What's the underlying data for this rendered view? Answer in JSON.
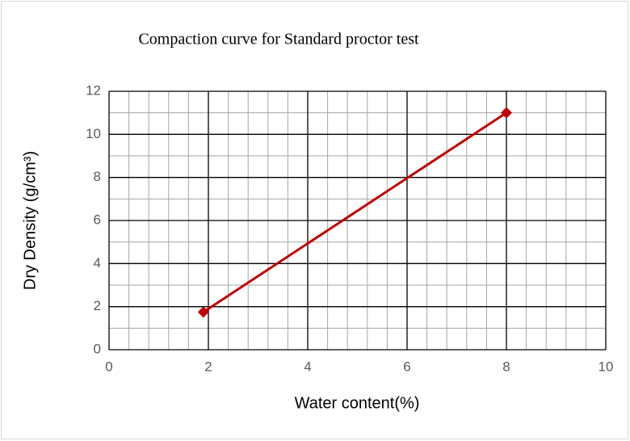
{
  "chart_data": {
    "type": "scatter_line",
    "title": "Compaction curve for Standard proctor test",
    "x_label": "Water content(%)",
    "y_label": "Dry Density (g/cm³)",
    "series": [
      {
        "name": "Dry density",
        "color": "#c00000",
        "x": [
          1.9,
          8
        ],
        "values": [
          1.75,
          11
        ]
      }
    ],
    "xlim": [
      0,
      10
    ],
    "xticks": [
      0,
      2,
      4,
      6,
      8,
      10
    ],
    "ylim": [
      0,
      12
    ],
    "yticks": [
      0,
      2,
      4,
      6,
      8,
      10,
      12
    ],
    "minor_xticks": [
      0.4,
      0.8,
      1.2,
      1.6,
      2.4,
      2.8,
      3.2,
      3.6,
      4.4,
      4.8,
      5.2,
      5.6,
      6.4,
      6.8,
      7.2,
      7.6,
      8.4,
      8.8,
      9.2,
      9.6
    ],
    "minor_yticks": [
      1,
      3,
      5,
      7,
      9,
      11
    ],
    "grid": true
  }
}
